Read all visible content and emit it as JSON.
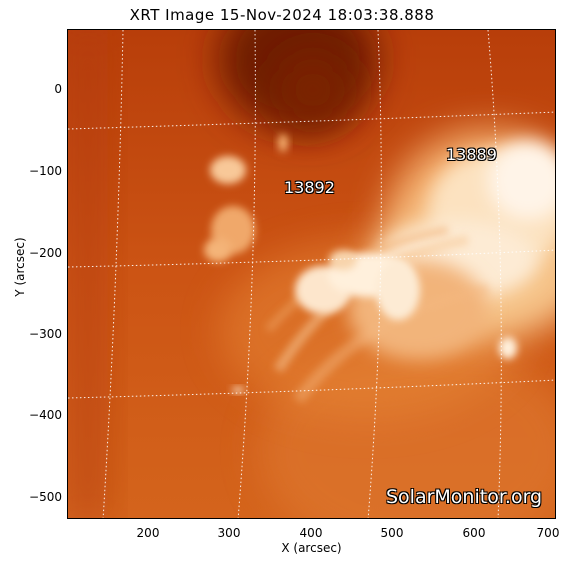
{
  "title": "XRT Image 15-Nov-2024 18:03:38.888",
  "x_axis": {
    "label": "X (arcsec)",
    "ticks": [
      "200",
      "300",
      "400",
      "500",
      "600",
      "700"
    ]
  },
  "y_axis": {
    "label": "Y (arcsec)",
    "ticks": [
      "0",
      "−100",
      "−200",
      "−300",
      "−400",
      "−500"
    ]
  },
  "regions": [
    {
      "id": "13889",
      "label": "13889"
    },
    {
      "id": "13892",
      "label": "13892"
    }
  ],
  "watermark": "SolarMonitor.org",
  "colors": {
    "background": "#c84c10",
    "bright": "#fff4e8",
    "dark": "#6e1c04",
    "grid": "#ffffff"
  }
}
